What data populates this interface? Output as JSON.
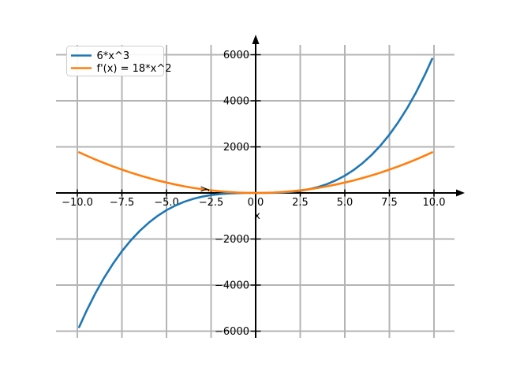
{
  "chart_data": {
    "type": "line",
    "title": "",
    "xlabel": "x",
    "ylabel": "y",
    "xlim": [
      -10.9,
      10.9
    ],
    "ylim": [
      -6430,
      6430
    ],
    "grid": true,
    "grid_color": "#b4b4b4",
    "axis_color": "#000000",
    "background_color": "#ffffff",
    "x_ticks": [
      -10,
      -7.5,
      -5,
      -2.5,
      0,
      2.5,
      5,
      7.5,
      10
    ],
    "x_tick_labels": [
      "−10.0",
      "−7.5",
      "−5.0",
      "−2.5",
      "0.0",
      "2.5",
      "5.0",
      "7.5",
      "10.0"
    ],
    "y_ticks": [
      -6000,
      -4000,
      -2000,
      2000,
      4000,
      6000
    ],
    "y_tick_labels": [
      "−6000",
      "−4000",
      "−2000",
      "2000",
      "4000",
      "6000"
    ],
    "legend": {
      "position": "upper left",
      "entries": [
        {
          "label": "6*x^3",
          "color": "#1f77b4"
        },
        {
          "label": "f'(x) = 18*x^2",
          "color": "#ff7f0e"
        }
      ]
    },
    "x": [
      -9.9,
      -9.5,
      -9,
      -8.5,
      -8,
      -7.5,
      -7,
      -6.5,
      -6,
      -5.5,
      -5,
      -4.5,
      -4,
      -3.5,
      -3,
      -2.5,
      -2,
      -1.5,
      -1,
      -0.5,
      0,
      0.5,
      1,
      1.5,
      2,
      2.5,
      3,
      3.5,
      4,
      4.5,
      5,
      5.5,
      6,
      6.5,
      7,
      7.5,
      8,
      8.5,
      9,
      9.5,
      9.9
    ],
    "series": [
      {
        "name": "6*x^3",
        "color": "#1f77b4",
        "values": [
          -5821.74,
          -5144.25,
          -4374,
          -3684.75,
          -3072,
          -2531.25,
          -2058,
          -1647.75,
          -1296,
          -998.25,
          -750,
          -546.75,
          -384,
          -257.25,
          -162,
          -93.75,
          -48,
          -20.25,
          -6,
          -0.75,
          0,
          0.75,
          6,
          20.25,
          48,
          93.75,
          162,
          257.25,
          384,
          546.75,
          750,
          998.25,
          1296,
          1647.75,
          2058,
          2531.25,
          3072,
          3684.75,
          4374,
          5144.25,
          5821.74
        ]
      },
      {
        "name": "f'(x) = 18*x^2",
        "color": "#ff7f0e",
        "values": [
          1764.18,
          1624.5,
          1458,
          1300.5,
          1152,
          1012.5,
          882,
          760.5,
          648,
          544.5,
          450,
          364.5,
          288,
          220.5,
          162,
          112.5,
          72,
          40.5,
          18,
          4.5,
          0,
          4.5,
          18,
          40.5,
          72,
          112.5,
          162,
          220.5,
          288,
          364.5,
          450,
          544.5,
          648,
          760.5,
          882,
          1012.5,
          1152,
          1300.5,
          1458,
          1624.5,
          1764.18
        ]
      }
    ]
  }
}
